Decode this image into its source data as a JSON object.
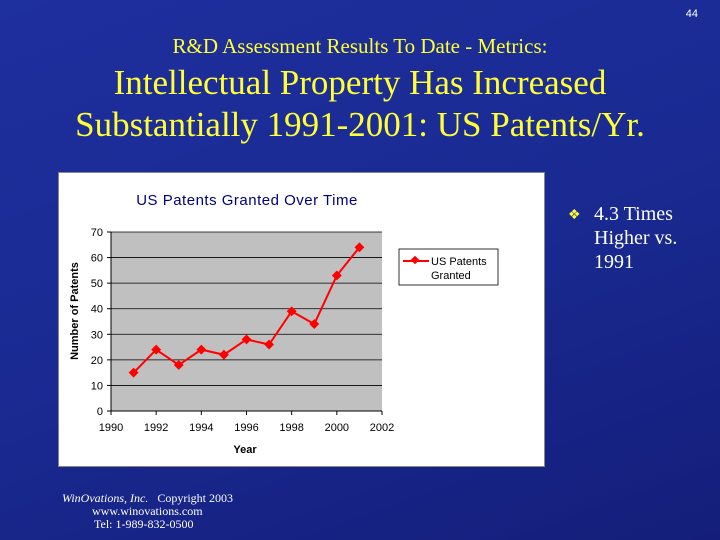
{
  "page_number": "44",
  "subtitle": "R&D Assessment Results To Date - Metrics:",
  "title_line1": "Intellectual Property Has Increased",
  "title_line2": "Substantially 1991-2001:  US Patents/Yr.",
  "bullet": {
    "icon": "diamond-bullet-icon",
    "text": "4.3 Times Higher vs. 1991"
  },
  "footer": {
    "company": "WinOvations, Inc.",
    "copyright": "Copyright 2003",
    "url": "www.winovations.com",
    "tel": "Tel:  1-989-832-0500"
  },
  "chart_data": {
    "type": "line",
    "title": "US Patents Granted Over Time",
    "xlabel": "Year",
    "ylabel": "Number of Patents",
    "x": [
      1991,
      1992,
      1993,
      1994,
      1995,
      1996,
      1997,
      1998,
      1999,
      2000,
      2001
    ],
    "series": [
      {
        "name": "US Patents Granted",
        "color": "#ff0000",
        "values": [
          15,
          24,
          18,
          24,
          22,
          28,
          26,
          39,
          34,
          53,
          64
        ]
      }
    ],
    "xlim": [
      1990,
      2002
    ],
    "ylim": [
      0,
      70
    ],
    "xticks": [
      "1990",
      "1992",
      "1994",
      "1996",
      "1998",
      "2000",
      "2002"
    ],
    "yticks": [
      "0",
      "10",
      "20",
      "30",
      "40",
      "50",
      "60",
      "70"
    ],
    "legend": {
      "position": "right",
      "label_line1": "US Patents",
      "label_line2": "Granted"
    },
    "plot_bg": "#c0c0c0",
    "grid": true
  }
}
